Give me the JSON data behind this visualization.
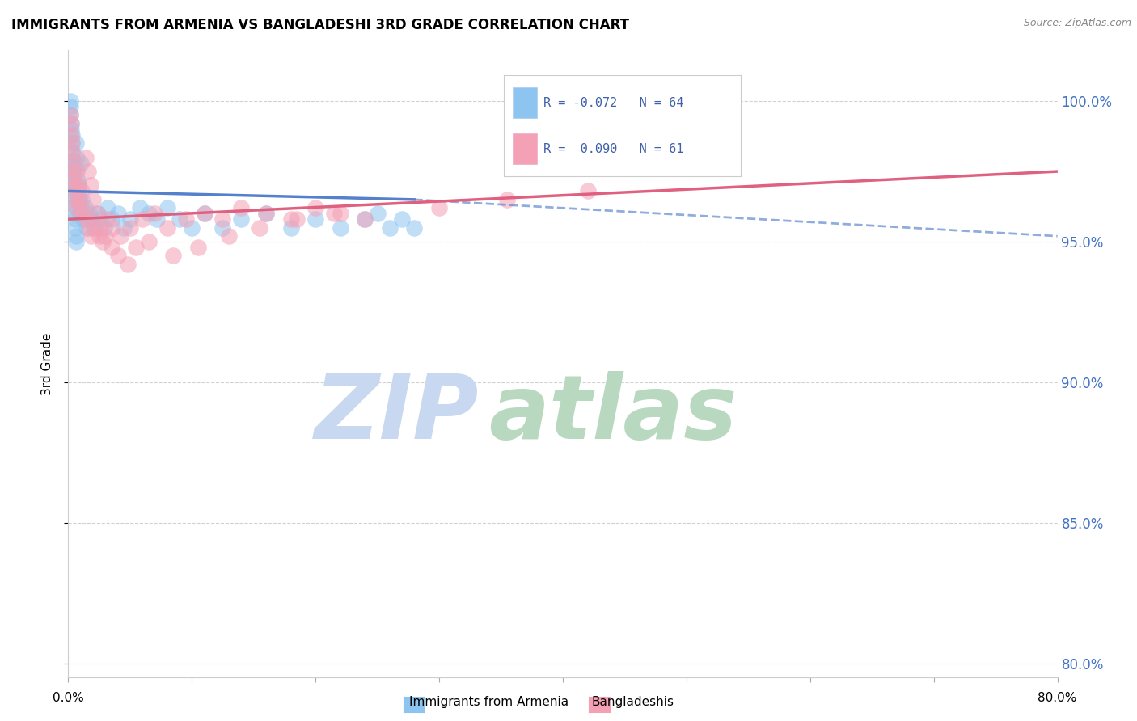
{
  "title": "IMMIGRANTS FROM ARMENIA VS BANGLADESHI 3RD GRADE CORRELATION CHART",
  "source": "Source: ZipAtlas.com",
  "ylabel": "3rd Grade",
  "yticks": [
    80.0,
    85.0,
    90.0,
    95.0,
    100.0
  ],
  "xlim": [
    0.0,
    80.0
  ],
  "ylim": [
    79.5,
    101.8
  ],
  "legend_blue_R": "-0.072",
  "legend_blue_N": "64",
  "legend_pink_R": "0.090",
  "legend_pink_N": "61",
  "blue_color": "#8DC4F0",
  "pink_color": "#F4A0B5",
  "blue_line_color": "#5580CC",
  "pink_line_color": "#E06080",
  "watermark_zip_color": "#C8D8F0",
  "watermark_atlas_color": "#B8D8C0",
  "blue_x": [
    0.15,
    0.18,
    0.2,
    0.22,
    0.25,
    0.28,
    0.3,
    0.3,
    0.32,
    0.35,
    0.38,
    0.4,
    0.42,
    0.45,
    0.48,
    0.5,
    0.52,
    0.55,
    0.58,
    0.6,
    0.62,
    0.65,
    0.7,
    0.72,
    0.75,
    0.8,
    0.82,
    0.85,
    0.9,
    0.95,
    1.0,
    1.1,
    1.2,
    1.4,
    1.5,
    1.7,
    1.9,
    2.1,
    2.4,
    2.6,
    2.9,
    3.2,
    3.5,
    4.0,
    4.5,
    5.0,
    5.8,
    6.5,
    7.2,
    8.0,
    9.0,
    10.0,
    11.0,
    12.5,
    14.0,
    16.0,
    18.0,
    20.0,
    22.0,
    24.0,
    25.0,
    26.0,
    27.0,
    28.0
  ],
  "blue_y": [
    100.0,
    99.8,
    99.5,
    99.2,
    99.0,
    98.8,
    98.5,
    98.2,
    97.9,
    97.7,
    97.5,
    97.2,
    97.0,
    96.8,
    96.5,
    96.3,
    96.0,
    95.8,
    95.5,
    95.2,
    95.0,
    98.5,
    98.0,
    97.6,
    97.2,
    96.8,
    96.5,
    97.0,
    96.5,
    96.0,
    97.8,
    96.5,
    95.8,
    96.2,
    95.5,
    96.0,
    95.8,
    95.5,
    96.0,
    95.8,
    95.5,
    96.2,
    95.8,
    96.0,
    95.5,
    95.8,
    96.2,
    96.0,
    95.8,
    96.2,
    95.8,
    95.5,
    96.0,
    95.5,
    95.8,
    96.0,
    95.5,
    95.8,
    95.5,
    95.8,
    96.0,
    95.5,
    95.8,
    95.5
  ],
  "pink_x": [
    0.18,
    0.22,
    0.25,
    0.28,
    0.32,
    0.35,
    0.4,
    0.45,
    0.5,
    0.55,
    0.6,
    0.65,
    0.7,
    0.8,
    0.9,
    1.0,
    1.1,
    1.3,
    1.5,
    1.7,
    1.9,
    2.2,
    2.5,
    2.8,
    3.2,
    3.6,
    4.2,
    5.0,
    6.0,
    7.0,
    8.0,
    9.5,
    11.0,
    12.5,
    14.0,
    16.0,
    18.0,
    20.0,
    22.0,
    1.4,
    1.6,
    1.8,
    2.0,
    2.3,
    2.6,
    3.0,
    3.5,
    4.0,
    4.8,
    5.5,
    6.5,
    8.5,
    10.5,
    13.0,
    15.5,
    18.5,
    21.5,
    24.0,
    30.0,
    35.5,
    42.0
  ],
  "pink_y": [
    99.5,
    99.2,
    98.8,
    98.5,
    98.2,
    97.9,
    97.6,
    97.3,
    97.0,
    96.8,
    96.5,
    96.2,
    97.5,
    97.0,
    96.5,
    96.2,
    96.8,
    96.0,
    95.8,
    95.5,
    95.2,
    95.5,
    95.2,
    95.0,
    95.8,
    95.5,
    95.2,
    95.5,
    95.8,
    96.0,
    95.5,
    95.8,
    96.0,
    95.8,
    96.2,
    96.0,
    95.8,
    96.2,
    96.0,
    98.0,
    97.5,
    97.0,
    96.5,
    96.0,
    95.5,
    95.2,
    94.8,
    94.5,
    94.2,
    94.8,
    95.0,
    94.5,
    94.8,
    95.2,
    95.5,
    95.8,
    96.0,
    95.8,
    96.2,
    96.5,
    96.8
  ],
  "blue_line_x0": 0.0,
  "blue_line_y0": 96.8,
  "blue_line_x1": 28.0,
  "blue_line_y1": 96.5,
  "blue_dash_x0": 28.0,
  "blue_dash_y0": 96.5,
  "blue_dash_x1": 80.0,
  "blue_dash_y1": 95.2,
  "pink_line_x0": 0.0,
  "pink_line_y0": 95.8,
  "pink_line_x1": 80.0,
  "pink_line_y1": 97.5
}
